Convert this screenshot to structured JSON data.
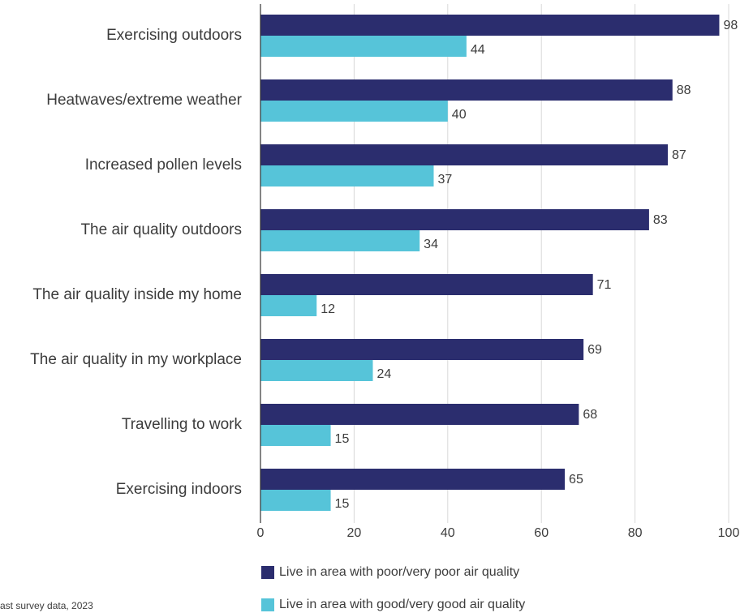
{
  "chart_data": {
    "type": "bar",
    "orientation": "horizontal",
    "categories": [
      "Exercising outdoors",
      "Heatwaves/extreme weather",
      "Increased pollen levels",
      "The air quality outdoors",
      "The air quality inside my home",
      "The air quality in my workplace",
      "Travelling to work",
      "Exercising indoors"
    ],
    "series": [
      {
        "name": "Live in area with poor/very poor air quality",
        "color": "#2b2d6e",
        "values": [
          98,
          88,
          87,
          83,
          71,
          69,
          68,
          65
        ]
      },
      {
        "name": "Live in area with good/very good air quality",
        "color": "#56c4d9",
        "values": [
          44,
          40,
          37,
          34,
          12,
          24,
          15,
          15
        ]
      }
    ],
    "xlim": [
      0,
      100
    ],
    "xticks": [
      0,
      20,
      40,
      60,
      80,
      100
    ],
    "grid": true,
    "legend": "bottom",
    "source": "ast survey data, 2023"
  }
}
